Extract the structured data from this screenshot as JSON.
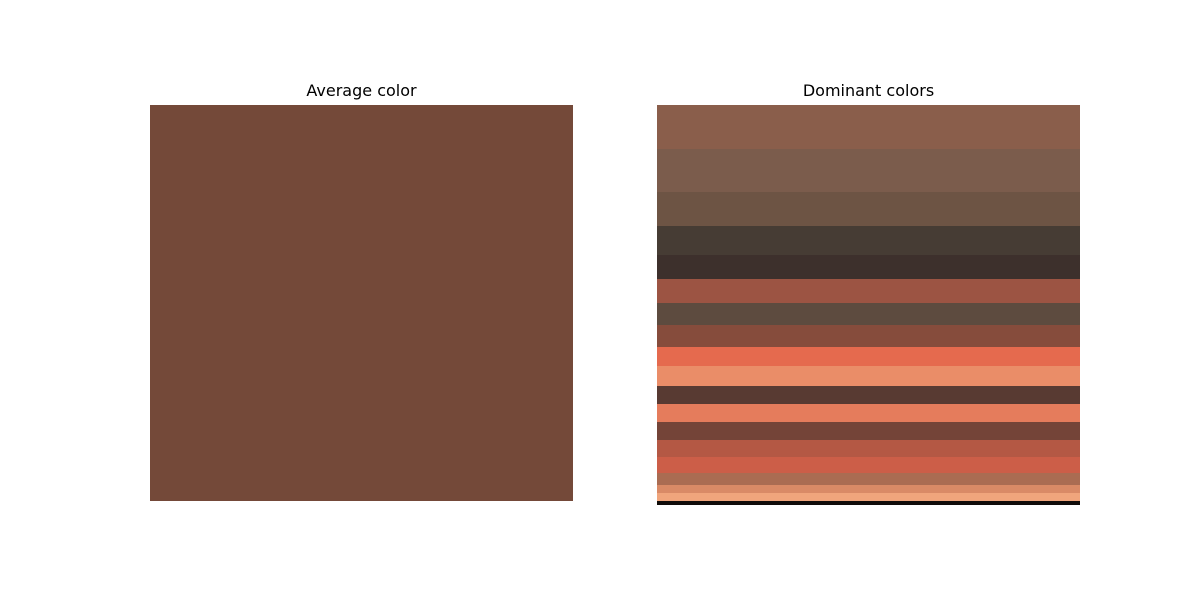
{
  "panels": {
    "average": {
      "title": "Average color"
    },
    "dominant": {
      "title": "Dominant colors"
    }
  },
  "chart_data": [
    {
      "type": "swatch",
      "title": "Average color",
      "color": "#744939"
    },
    {
      "type": "stacked-bar",
      "title": "Dominant colors",
      "total": 100,
      "series": [
        {
          "color": "#8a5e4b",
          "value": 11
        },
        {
          "color": "#7b5c4c",
          "value": 11
        },
        {
          "color": "#6d5444",
          "value": 8.5
        },
        {
          "color": "#463c34",
          "value": 7.5
        },
        {
          "color": "#3d302c",
          "value": 6
        },
        {
          "color": "#9c5443",
          "value": 6
        },
        {
          "color": "#5d4b3f",
          "value": 5.5
        },
        {
          "color": "#864c3c",
          "value": 5.5
        },
        {
          "color": "#e56a4e",
          "value": 5
        },
        {
          "color": "#ea8d68",
          "value": 5
        },
        {
          "color": "#583a32",
          "value": 4.5
        },
        {
          "color": "#e57c5c",
          "value": 4.5
        },
        {
          "color": "#744438",
          "value": 4.5
        },
        {
          "color": "#b45844",
          "value": 4.5
        },
        {
          "color": "#cc5e48",
          "value": 4
        },
        {
          "color": "#aa6c52",
          "value": 3
        },
        {
          "color": "#d98a66",
          "value": 2
        },
        {
          "color": "#f0a57c",
          "value": 2
        },
        {
          "color": "#100c0a",
          "value": 1
        }
      ]
    }
  ]
}
